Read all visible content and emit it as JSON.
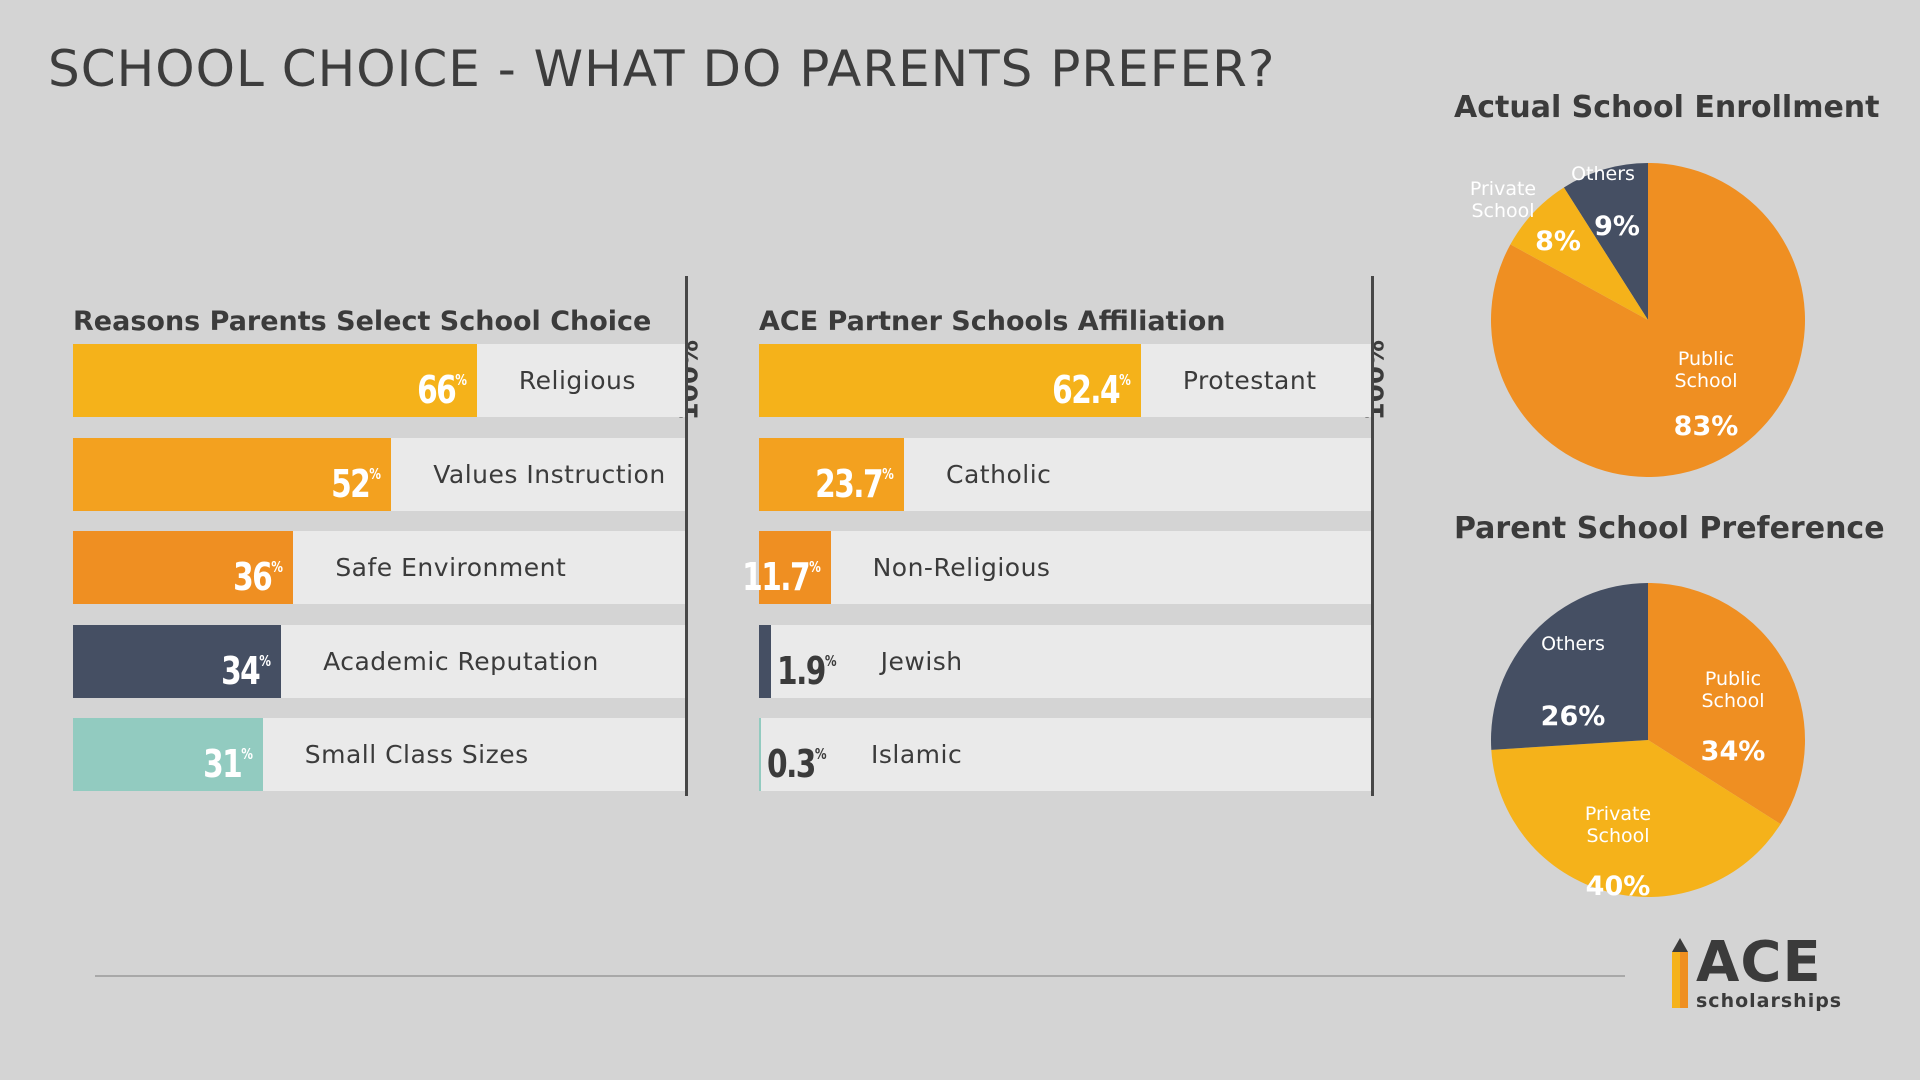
{
  "title": "SCHOOL CHOICE - WHAT DO PARENTS PREFER?",
  "colors": {
    "yellow": "#f5b21a",
    "orange": "#ef8f22",
    "navy": "#454f63",
    "teal": "#92cbc0",
    "row_bg": "#eaeaea",
    "background": "#d4d4d4"
  },
  "chart_data": [
    {
      "type": "bar",
      "title": "Reasons Parents Select School Choice",
      "max_label": "100%",
      "xlim": [
        0,
        100
      ],
      "categories": [
        "Religious",
        "Values Instruction",
        "Safe Environment",
        "Academic Reputation",
        "Small Class Sizes"
      ],
      "values": [
        66,
        52,
        36,
        34,
        31
      ],
      "value_labels": [
        "66",
        "52",
        "36",
        "34",
        "31"
      ],
      "unit": "%",
      "colors": [
        "#f5b21a",
        "#f3a11f",
        "#ef8f22",
        "#454f63",
        "#92cbc0"
      ]
    },
    {
      "type": "bar",
      "title": "ACE Partner Schools Affiliation",
      "max_label": "100%",
      "xlim": [
        0,
        100
      ],
      "categories": [
        "Protestant",
        "Catholic",
        "Non-Religious",
        "Jewish",
        "Islamic"
      ],
      "values": [
        62.4,
        23.7,
        11.7,
        1.9,
        0.3
      ],
      "value_labels": [
        "62.4",
        "23.7",
        "11.7",
        "1.9",
        "0.3"
      ],
      "unit": "%",
      "colors": [
        "#f5b21a",
        "#f3a11f",
        "#ef8f22",
        "#454f63",
        "#92cbc0"
      ]
    },
    {
      "type": "pie",
      "title": "Actual School Enrollment",
      "slices": [
        {
          "label": "Others",
          "value": 9,
          "value_label": "9%",
          "color": "#454f63"
        },
        {
          "label": "Public School",
          "value": 83,
          "value_label": "83%",
          "color": "#ef8f22"
        },
        {
          "label": "Private School",
          "value": 8,
          "value_label": "8%",
          "color": "#f5b21a"
        }
      ]
    },
    {
      "type": "pie",
      "title": "Parent School Preference",
      "slices": [
        {
          "label": "Public School",
          "value": 34,
          "value_label": "34%",
          "color": "#ef8f22"
        },
        {
          "label": "Private School",
          "value": 40,
          "value_label": "40%",
          "color": "#f5b21a"
        },
        {
          "label": "Others",
          "value": 26,
          "value_label": "26%",
          "color": "#454f63"
        }
      ]
    }
  ],
  "logo": {
    "name": "ACE",
    "subtitle": "scholarships",
    "icon": "pencil-icon"
  }
}
